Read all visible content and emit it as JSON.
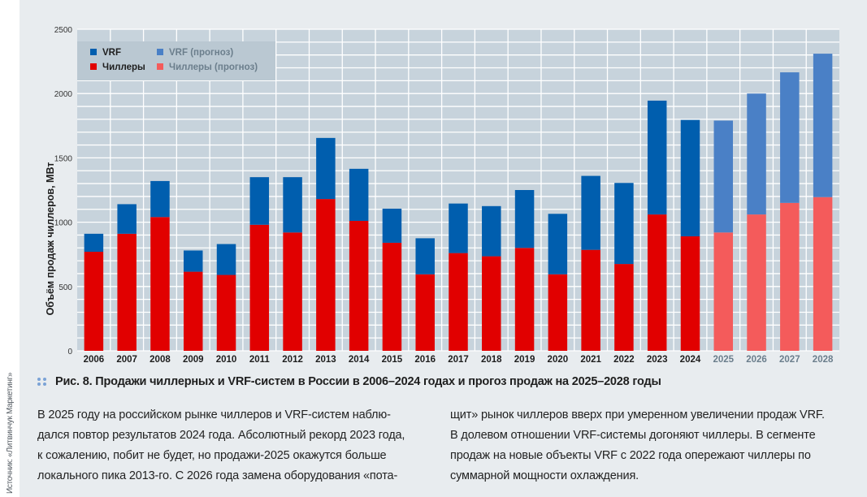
{
  "source": "Источник: «Литвинчук Маркетинг»",
  "caption": {
    "label": "Рис. 8.",
    "text": "Продажи чиллерных и VRF-систем в России в 2006–2024 годах и прогоз продаж на 2025–2028 годы"
  },
  "body": {
    "col1": [
      "В 2025 году на российском рынке чиллеров и VRF-систем наблю-",
      "дался повтор результатов 2024 года. Абсолютный рекорд 2023 года,",
      "к сожалению, побит не будет, но продажи-2025 окажутся больше",
      "локального пика 2013-го. С 2026 года замена оборудования «пота-"
    ],
    "col2": [
      "щит» рынок чиллеров вверх при умеренном увеличении продаж VRF.",
      "В долевом отношении VRF-системы догоняют чиллеры. В сегменте",
      "продаж на новые объекты VRF с 2022 года опережают чиллеры по",
      "суммарной мощности охлаждения."
    ]
  },
  "colors": {
    "vrf": "#005eae",
    "chillers": "#e10000",
    "vrf_forecast": "#4a80c6",
    "chillers_forecast": "#f45b5b",
    "plot_bg": "#c7d3dc",
    "grid": "#ffffff",
    "legend_bg": "#bac8d2",
    "label_actual": "#1e1e1e",
    "label_forecast": "#6b7e8c"
  },
  "chart_data": {
    "type": "bar",
    "stacked": true,
    "title": "",
    "xlabel": "",
    "ylabel": "Объём продаж чиллеров, МВт",
    "ylim": [
      0,
      2500
    ],
    "yticks": [
      0,
      500,
      1000,
      1500,
      2000,
      2500
    ],
    "minor_grid_step": 100,
    "grid": true,
    "legend_position": "top-left",
    "categories": [
      "2006",
      "2007",
      "2008",
      "2009",
      "2010",
      "2011",
      "2012",
      "2013",
      "2014",
      "2015",
      "2016",
      "2017",
      "2018",
      "2019",
      "2020",
      "2021",
      "2022",
      "2023",
      "2024",
      "2025",
      "2026",
      "2027",
      "2028"
    ],
    "forecast_from_index": 19,
    "series": [
      {
        "name": "Чиллеры",
        "forecast_name": "Чиллеры (прогноз)",
        "values": [
          770,
          910,
          1040,
          615,
          590,
          980,
          920,
          1180,
          1010,
          840,
          595,
          760,
          735,
          800,
          595,
          785,
          675,
          1060,
          890,
          920,
          1060,
          1150,
          1195
        ]
      },
      {
        "name": "VRF",
        "forecast_name": "VRF (прогноз)",
        "values": [
          140,
          230,
          280,
          165,
          240,
          370,
          430,
          475,
          405,
          265,
          280,
          385,
          390,
          450,
          470,
          575,
          630,
          885,
          905,
          870,
          940,
          1015,
          1115
        ]
      }
    ],
    "totals": [
      910,
      1140,
      1320,
      780,
      830,
      1350,
      1350,
      1655,
      1415,
      1105,
      875,
      1145,
      1125,
      1250,
      1065,
      1360,
      1305,
      1945,
      1795,
      1790,
      2000,
      2165,
      2310
    ],
    "legend": [
      {
        "label": "VRF",
        "series": "VRF",
        "forecast": false
      },
      {
        "label": "Чиллеры",
        "series": "Чиллеры",
        "forecast": false
      },
      {
        "label": "VRF (прогноз)",
        "series": "VRF",
        "forecast": true
      },
      {
        "label": "Чиллеры (прогноз)",
        "series": "Чиллеры",
        "forecast": true
      }
    ]
  }
}
